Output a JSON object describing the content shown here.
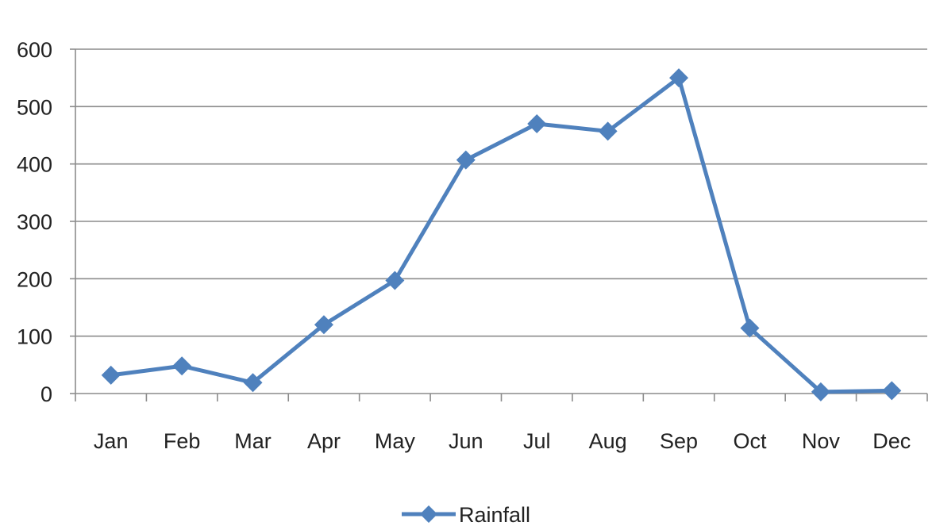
{
  "chart_data": {
    "type": "line",
    "categories": [
      "Jan",
      "Feb",
      "Mar",
      "Apr",
      "May",
      "Jun",
      "Jul",
      "Aug",
      "Sep",
      "Oct",
      "Nov",
      "Dec"
    ],
    "series": [
      {
        "name": "Rainfall",
        "values": [
          32,
          48,
          19,
          120,
          197,
          407,
          470,
          457,
          550,
          114,
          3,
          5
        ]
      }
    ],
    "ylim": [
      0,
      600
    ],
    "yticks": [
      0,
      100,
      200,
      300,
      400,
      500,
      600
    ],
    "grid": true,
    "legend_position": "bottom",
    "series_color": "#4F81BD",
    "gridline_color": "#8c8c8c"
  }
}
